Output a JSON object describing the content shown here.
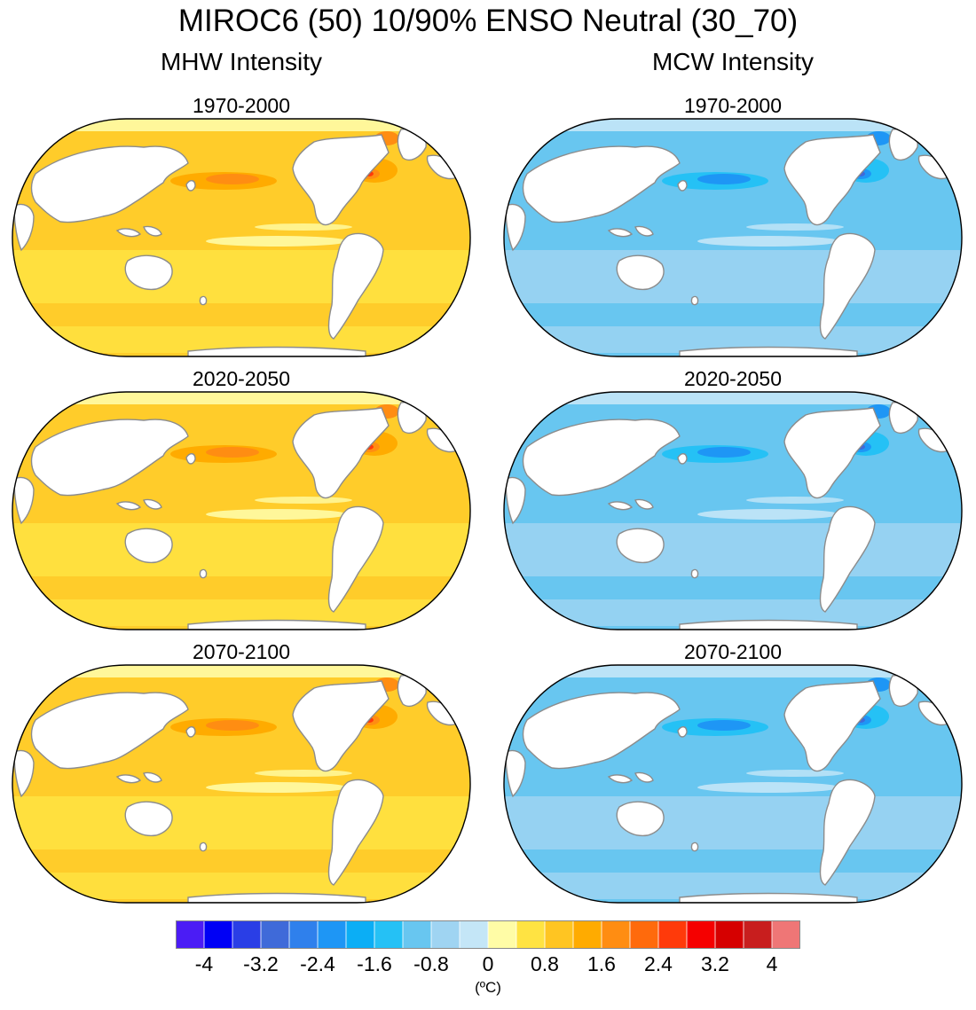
{
  "title": "MIROC6 (50) 10/90% ENSO Neutral (30_70)",
  "columns": {
    "left": "MHW Intensity",
    "right": "MCW Intensity"
  },
  "panels": [
    {
      "period": "1970-2000",
      "variable": "MHW Intensity"
    },
    {
      "period": "1970-2000",
      "variable": "MCW Intensity"
    },
    {
      "period": "2020-2050",
      "variable": "MHW Intensity"
    },
    {
      "period": "2020-2050",
      "variable": "MCW Intensity"
    },
    {
      "period": "2070-2100",
      "variable": "MHW Intensity"
    },
    {
      "period": "2070-2100",
      "variable": "MCW Intensity"
    }
  ],
  "colorbar": {
    "colors": [
      "#4b1cf5",
      "#0000f5",
      "#2a3ee6",
      "#3f6ad9",
      "#2f80ec",
      "#1e96f5",
      "#0baef5",
      "#25c1f5",
      "#68c6f0",
      "#9fd4f2",
      "#c4e6f7",
      "#fffca6",
      "#ffe342",
      "#ffc522",
      "#ffab00",
      "#ff8d12",
      "#ff6a0c",
      "#ff3a0a",
      "#f50000",
      "#d60000",
      "#c81e1e",
      "#ef7676"
    ],
    "tick_labels": [
      "-4",
      "-3.2",
      "-2.4",
      "-1.6",
      "-0.8",
      "0",
      "0.8",
      "1.6",
      "2.4",
      "3.2",
      "4"
    ],
    "units": "(ºC)"
  },
  "map_palette": {
    "mhw": {
      "base": "#ffcc2a",
      "light": "#ffe342",
      "pale": "#fffca6",
      "warm": "#ffab00",
      "hot": "#ff8d12",
      "hottest": "#ff3a0a"
    },
    "mcw": {
      "base": "#68c6f0",
      "light": "#9fd4f2",
      "pale": "#c4e6f7",
      "cool": "#25c1f5",
      "cold": "#1e96f5",
      "coldest": "#3f6ad9"
    },
    "land": "#ffffff",
    "coast": "#8c8c8c",
    "border": "#000000"
  }
}
